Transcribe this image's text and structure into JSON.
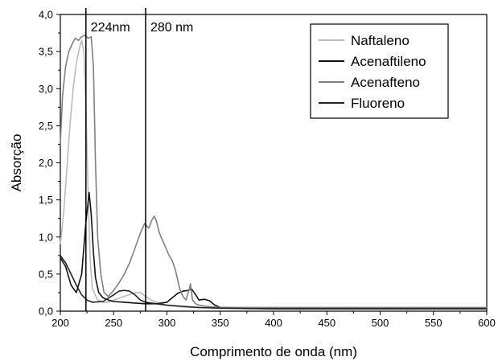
{
  "chart_data": {
    "type": "line",
    "xlabel": "Comprimento de onda (nm)",
    "ylabel": "Absorção",
    "xlim": [
      200,
      600
    ],
    "ylim": [
      0,
      4
    ],
    "xticks": [
      200,
      250,
      300,
      350,
      400,
      450,
      500,
      550,
      600
    ],
    "yticks": [
      0,
      0.5,
      1,
      1.5,
      2,
      2.5,
      3,
      3.5,
      4
    ],
    "xtick_labels": [
      "200",
      "250",
      "300",
      "350",
      "400",
      "450",
      "500",
      "550",
      "600"
    ],
    "ytick_labels": [
      "0,0",
      "0,5",
      "1,0",
      "1,5",
      "2,0",
      "2,5",
      "3,0",
      "3,5",
      "4,0"
    ],
    "grid": false,
    "legend_position": "top-right",
    "annotations": [
      {
        "text": "224nm",
        "x": 224
      },
      {
        "text": "280 nm",
        "x": 280
      }
    ],
    "series": [
      {
        "name": "Naftaleno",
        "color": "#bbbbbb",
        "x": [
          200,
          203,
          206,
          209,
          212,
          215,
          218,
          220,
          222,
          224,
          226,
          228,
          230,
          235,
          240,
          245,
          250,
          260,
          270,
          275,
          280,
          285,
          290,
          300,
          310,
          320,
          350,
          400,
          500,
          600
        ],
        "y": [
          0.9,
          1.3,
          1.9,
          2.5,
          3.0,
          3.35,
          3.55,
          3.65,
          3.5,
          2.8,
          1.6,
          0.7,
          0.3,
          0.15,
          0.12,
          0.12,
          0.15,
          0.2,
          0.25,
          0.25,
          0.2,
          0.15,
          0.12,
          0.08,
          0.06,
          0.05,
          0.04,
          0.04,
          0.04,
          0.04
        ]
      },
      {
        "name": "Acenaftileno",
        "color": "#111111",
        "x": [
          200,
          205,
          210,
          215,
          220,
          224,
          227,
          229,
          231,
          233,
          236,
          240,
          245,
          250,
          260,
          270,
          280,
          290,
          300,
          305,
          310,
          315,
          320,
          323,
          327,
          330,
          335,
          340,
          345,
          350,
          400,
          500,
          600
        ],
        "y": [
          0.72,
          0.6,
          0.35,
          0.25,
          0.5,
          1.2,
          1.6,
          1.3,
          0.8,
          0.45,
          0.25,
          0.18,
          0.15,
          0.13,
          0.12,
          0.11,
          0.1,
          0.1,
          0.12,
          0.18,
          0.24,
          0.27,
          0.28,
          0.3,
          0.22,
          0.15,
          0.16,
          0.14,
          0.08,
          0.05,
          0.04,
          0.04,
          0.04
        ]
      },
      {
        "name": "Acenafteno",
        "color": "#808080",
        "x": [
          200,
          202,
          205,
          208,
          211,
          214,
          217,
          220,
          223,
          226,
          229,
          231,
          233,
          235,
          238,
          241,
          245,
          250,
          255,
          260,
          265,
          270,
          275,
          279,
          283,
          286,
          288,
          290,
          293,
          296,
          299,
          302,
          305,
          308,
          312,
          315,
          318,
          321,
          322,
          324,
          327,
          330,
          340,
          350,
          400,
          500,
          600
        ],
        "y": [
          2.25,
          2.9,
          3.3,
          3.5,
          3.6,
          3.68,
          3.65,
          3.7,
          3.72,
          3.68,
          3.7,
          3.3,
          2.0,
          1.0,
          0.5,
          0.25,
          0.2,
          0.28,
          0.38,
          0.5,
          0.65,
          0.85,
          1.05,
          1.18,
          1.12,
          1.23,
          1.28,
          1.22,
          1.05,
          0.95,
          0.85,
          0.75,
          0.68,
          0.55,
          0.3,
          0.2,
          0.15,
          0.3,
          0.37,
          0.15,
          0.1,
          0.08,
          0.06,
          0.05,
          0.05,
          0.05,
          0.05
        ]
      },
      {
        "name": "Fluoreno",
        "color": "#222222",
        "x": [
          200,
          205,
          210,
          215,
          220,
          225,
          230,
          240,
          250,
          255,
          260,
          265,
          270,
          275,
          280,
          290,
          300,
          310,
          320,
          330,
          350,
          400,
          500,
          600
        ],
        "y": [
          0.75,
          0.65,
          0.5,
          0.35,
          0.22,
          0.15,
          0.12,
          0.13,
          0.22,
          0.27,
          0.28,
          0.27,
          0.22,
          0.15,
          0.12,
          0.1,
          0.08,
          0.07,
          0.06,
          0.05,
          0.04,
          0.03,
          0.03,
          0.03
        ]
      }
    ]
  }
}
